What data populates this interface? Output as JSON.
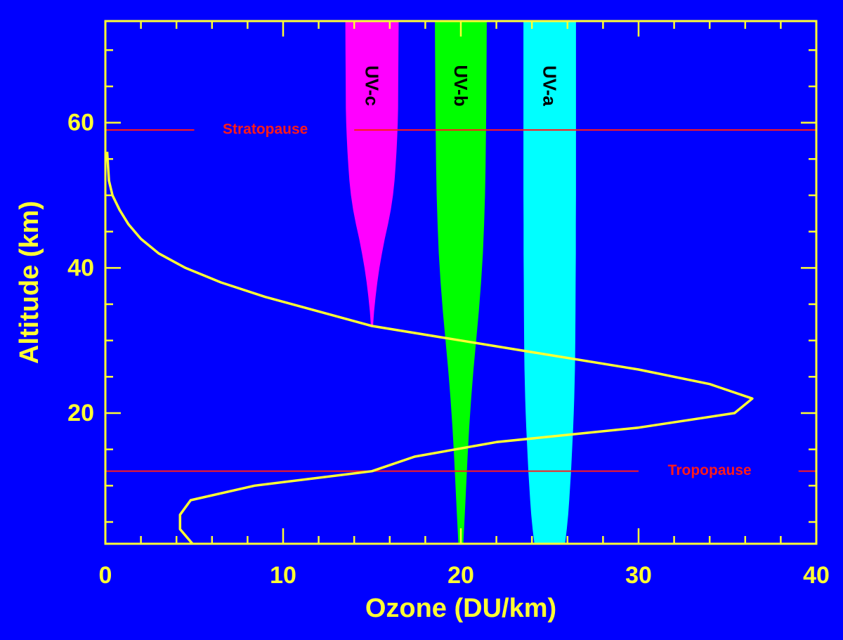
{
  "chart_data": {
    "type": "line",
    "xlabel": "Ozone (DU/km)",
    "ylabel": "Altitude (km)",
    "xlim": [
      0,
      40
    ],
    "ylim": [
      2,
      74
    ],
    "xticks": [
      0,
      10,
      20,
      30,
      40
    ],
    "xtick_labels": [
      "0",
      "10",
      "20",
      "30",
      "40"
    ],
    "yticks": [
      20,
      40,
      60
    ],
    "ytick_labels": [
      "20",
      "40",
      "60"
    ],
    "grid": false,
    "colors": {
      "background": "#0000ff",
      "axes": "#ffff33",
      "ozone_line": "#ffff33",
      "reference_lines": "#ff1a1a",
      "uv_c": "#ff00ff",
      "uv_b": "#00ff00",
      "uv_a": "#00ffff",
      "band_text": "#000000"
    },
    "series": [
      {
        "x": [
          4.9,
          4.2,
          4.2,
          4.8,
          8.4,
          15.0,
          17.4,
          22.0,
          30.0,
          35.4,
          36.4,
          34.0,
          30.0,
          20.0,
          15.0,
          12.0,
          9.0,
          6.5,
          4.5,
          3.0,
          2.0,
          1.3,
          0.8,
          0.4,
          0.2,
          0.1
        ],
        "y": [
          2,
          4,
          6,
          8,
          10,
          12,
          14,
          16,
          18,
          20,
          22,
          24,
          26,
          30,
          32,
          34,
          36,
          38,
          40,
          42,
          44,
          46,
          48,
          50,
          52,
          56
        ]
      }
    ],
    "uv_bands": [
      {
        "label": "UV-c",
        "center": 15.0,
        "y": [
          32,
          34,
          36,
          38,
          40,
          42,
          44,
          46,
          48,
          50,
          52,
          54,
          56,
          58,
          60,
          62,
          66,
          70,
          74
        ],
        "half_width": [
          0.06,
          0.12,
          0.2,
          0.3,
          0.42,
          0.56,
          0.72,
          0.9,
          1.06,
          1.18,
          1.27,
          1.33,
          1.38,
          1.42,
          1.45,
          1.47,
          1.48,
          1.49,
          1.5
        ]
      },
      {
        "label": "UV-b",
        "center": 20.0,
        "y": [
          2,
          6,
          10,
          14,
          18,
          22,
          26,
          30,
          34,
          38,
          42,
          46,
          50,
          54,
          58,
          62,
          66,
          70,
          74
        ],
        "half_width": [
          0.14,
          0.22,
          0.3,
          0.38,
          0.47,
          0.58,
          0.71,
          0.86,
          1.01,
          1.14,
          1.24,
          1.31,
          1.36,
          1.39,
          1.41,
          1.43,
          1.44,
          1.45,
          1.46
        ]
      },
      {
        "label": "UV-a",
        "center": 25.0,
        "y": [
          2,
          4,
          6,
          8,
          10,
          12,
          14,
          16,
          18,
          20,
          22,
          24,
          26,
          28,
          30,
          34,
          38,
          42,
          46,
          50,
          54,
          58,
          62,
          66,
          70,
          74
        ],
        "half_width": [
          0.86,
          0.96,
          1.04,
          1.1,
          1.15,
          1.2,
          1.24,
          1.28,
          1.32,
          1.35,
          1.38,
          1.4,
          1.42,
          1.43,
          1.44,
          1.45,
          1.46,
          1.47,
          1.47,
          1.48,
          1.48,
          1.48,
          1.48,
          1.48,
          1.48,
          1.48
        ]
      }
    ],
    "reference_lines": [
      {
        "name": "stratopause",
        "label": "Stratopause",
        "y": 59,
        "label_x": 9,
        "gaps": [
          [
            5,
            14
          ]
        ]
      },
      {
        "name": "tropopause",
        "label": "Tropopause",
        "y": 12,
        "label_x": 34,
        "gaps": [
          [
            30,
            39
          ]
        ]
      }
    ]
  }
}
